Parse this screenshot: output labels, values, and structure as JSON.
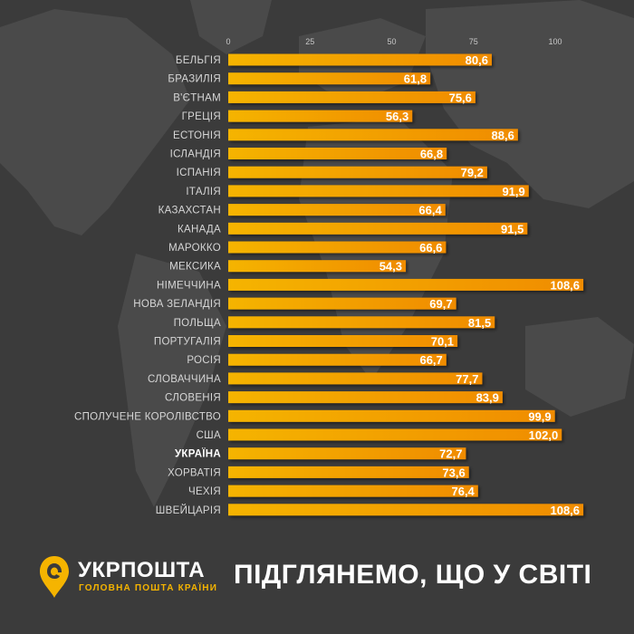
{
  "brand": {
    "name": "УКРПОШТА",
    "slogan": "ГОЛОВНА ПОШТА КРАЇНИ",
    "accent_color": "#f5b400"
  },
  "headline": "ПІДГЛЯНЕМО, ЩО У СВІТІ",
  "chart_data": {
    "type": "bar",
    "orientation": "horizontal",
    "categories": [
      "БЕЛЬГІЯ",
      "БРАЗИЛІЯ",
      "В'ЄТНАМ",
      "ГРЕЦІЯ",
      "ЕСТОНІЯ",
      "ІСЛАНДІЯ",
      "ІСПАНІЯ",
      "ІТАЛІЯ",
      "КАЗАХСТАН",
      "КАНАДА",
      "МАРОККО",
      "МЕКСИКА",
      "НІМЕЧЧИНА",
      "НОВА ЗЕЛАНДІЯ",
      "ПОЛЬЩА",
      "ПОРТУГАЛІЯ",
      "РОСІЯ",
      "СЛОВАЧЧИНА",
      "СЛОВЕНІЯ",
      "СПОЛУЧЕНЕ КОРОЛІВСТВО",
      "США",
      "УКРАЇНА",
      "ХОРВАТІЯ",
      "ЧЕХІЯ",
      "ШВЕЙЦАРІЯ"
    ],
    "values": [
      80.6,
      61.8,
      75.6,
      56.3,
      88.6,
      66.8,
      79.2,
      91.9,
      66.4,
      91.5,
      66.6,
      54.3,
      108.6,
      69.7,
      81.5,
      70.1,
      66.7,
      77.7,
      83.9,
      99.9,
      102.0,
      72.7,
      73.6,
      76.4,
      108.6
    ],
    "value_labels": [
      "80,6",
      "61,8",
      "75,6",
      "56,3",
      "88,6",
      "66,8",
      "79,2",
      "91,9",
      "66,4",
      "91,5",
      "66,6",
      "54,3",
      "108,6",
      "69,7",
      "81,5",
      "70,1",
      "66,7",
      "77,7",
      "83,9",
      "99,9",
      "102,0",
      "72,7",
      "73,6",
      "76,4",
      "108,6"
    ],
    "highlight": "УКРАЇНА",
    "xticks": [
      0,
      25,
      50,
      75,
      100
    ],
    "xtick_labels": [
      "0",
      "25",
      "50",
      "75",
      "100"
    ],
    "xlim": [
      0,
      110
    ],
    "bar_color": "#f5b400",
    "bar_color_end": "#f08c00",
    "grid": false
  }
}
